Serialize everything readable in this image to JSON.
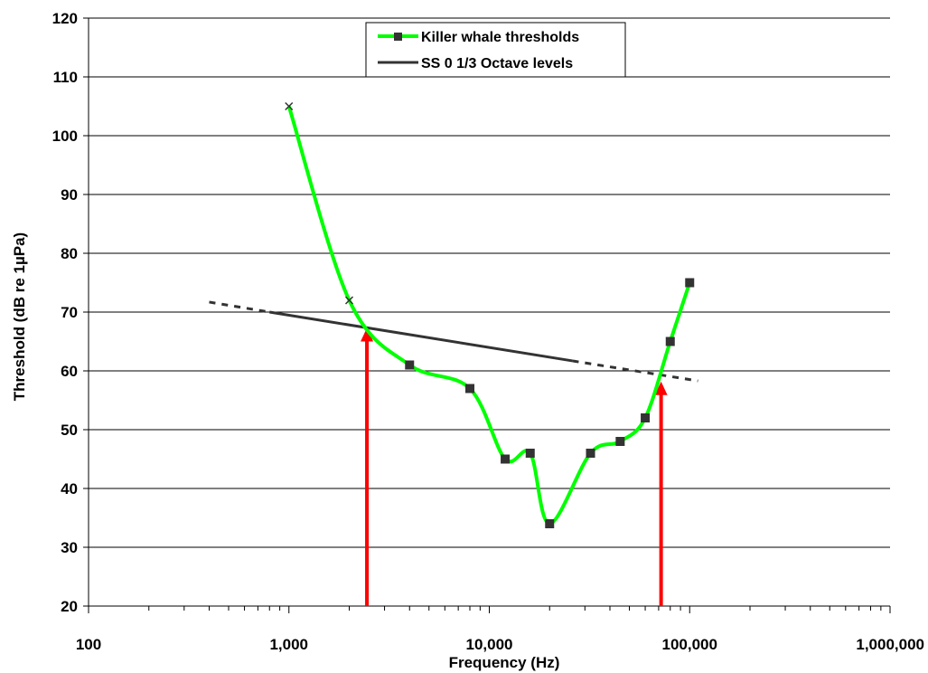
{
  "chart_data": {
    "type": "line",
    "title": "",
    "xlabel": "Frequency (Hz)",
    "ylabel": "Threshold (dB re 1µPa)",
    "x_scale": "log",
    "xlim": [
      100,
      1000000
    ],
    "ylim": [
      20,
      120
    ],
    "x_ticks": [
      {
        "value": 100,
        "label": "100"
      },
      {
        "value": 1000,
        "label": "1,000"
      },
      {
        "value": 10000,
        "label": "10,000"
      },
      {
        "value": 100000,
        "label": "100,000"
      },
      {
        "value": 1000000,
        "label": "1,000,000"
      }
    ],
    "y_ticks": [
      {
        "value": 20,
        "label": "20"
      },
      {
        "value": 30,
        "label": "30"
      },
      {
        "value": 40,
        "label": "40"
      },
      {
        "value": 50,
        "label": "50"
      },
      {
        "value": 60,
        "label": "60"
      },
      {
        "value": 70,
        "label": "70"
      },
      {
        "value": 80,
        "label": "80"
      },
      {
        "value": 90,
        "label": "90"
      },
      {
        "value": 100,
        "label": "100"
      },
      {
        "value": 110,
        "label": "110"
      },
      {
        "value": 120,
        "label": "120"
      }
    ],
    "grid": "horizontal",
    "legend_position": "top-center",
    "series": [
      {
        "name": "Killer whale thresholds",
        "color": "#00ff00",
        "marker": "square",
        "x_marker_points": [
          {
            "x": 1000,
            "y": 105
          },
          {
            "x": 2000,
            "y": 72
          }
        ],
        "points": [
          {
            "x": 4000,
            "y": 61
          },
          {
            "x": 8000,
            "y": 57
          },
          {
            "x": 12000,
            "y": 45
          },
          {
            "x": 16000,
            "y": 46
          },
          {
            "x": 20000,
            "y": 34
          },
          {
            "x": 32000,
            "y": 46
          },
          {
            "x": 45000,
            "y": 48
          },
          {
            "x": 60000,
            "y": 52
          },
          {
            "x": 80000,
            "y": 65
          },
          {
            "x": 100000,
            "y": 75
          }
        ]
      },
      {
        "name": "SS 0 1/3 Octave levels",
        "color": "#333333",
        "solid_segment": [
          {
            "x": 800,
            "y": 70
          },
          {
            "x": 26000,
            "y": 61.7
          }
        ],
        "dashed_extensions": [
          [
            {
              "x": 400,
              "y": 71.7
            },
            {
              "x": 800,
              "y": 70
            }
          ],
          [
            {
              "x": 26000,
              "y": 61.7
            },
            {
              "x": 110000,
              "y": 58.3
            }
          ]
        ]
      }
    ],
    "annotations": [
      {
        "type": "arrow",
        "color": "#ff0000",
        "x": 2450,
        "y_from": 20,
        "y_to": 67.3
      },
      {
        "type": "arrow",
        "color": "#ff0000",
        "x": 72000,
        "y_from": 20,
        "y_to": 58.2
      }
    ]
  }
}
